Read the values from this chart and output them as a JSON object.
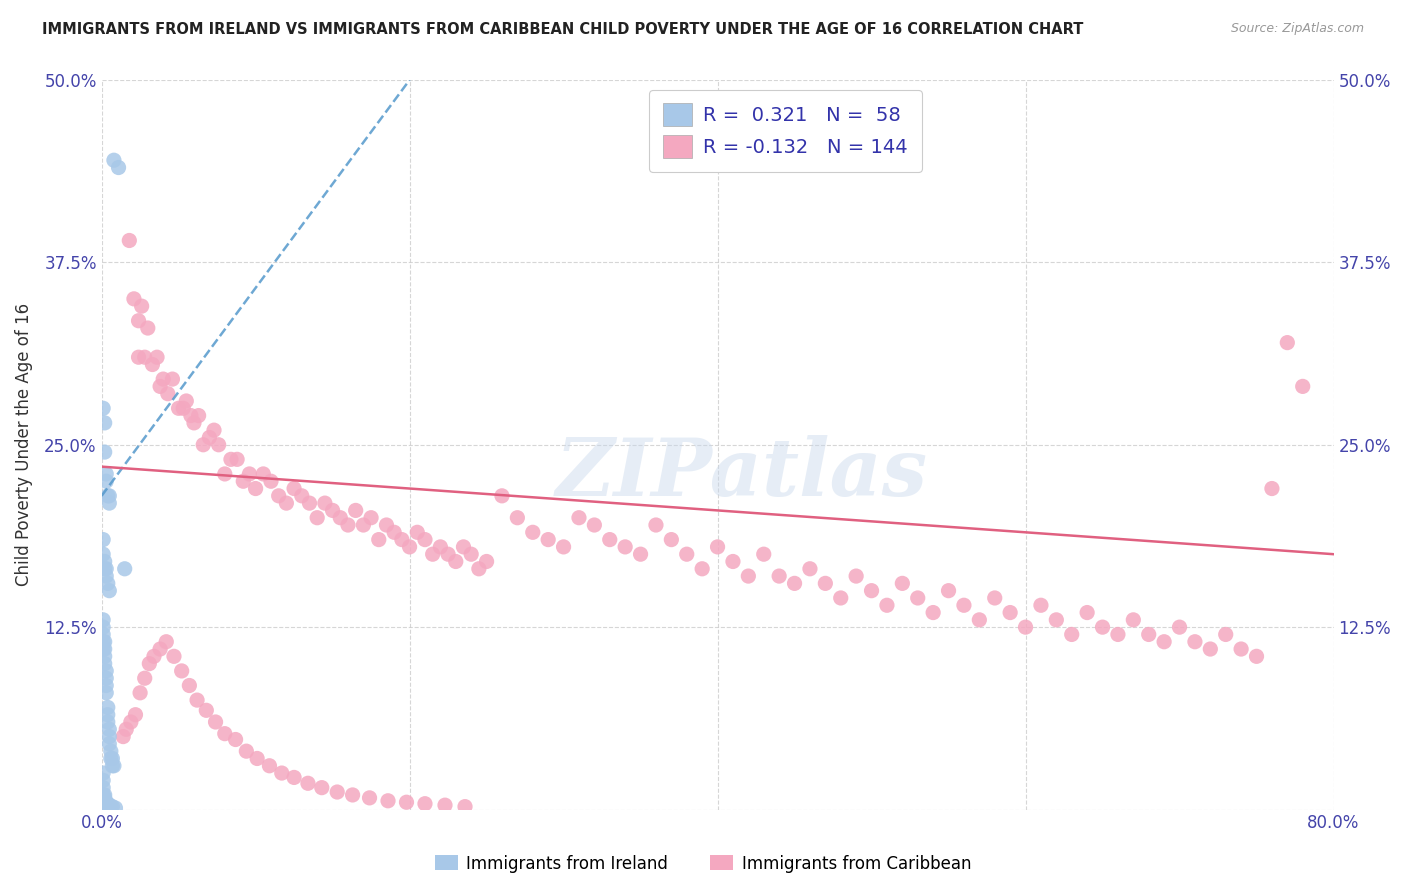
{
  "title": "IMMIGRANTS FROM IRELAND VS IMMIGRANTS FROM CARIBBEAN CHILD POVERTY UNDER THE AGE OF 16 CORRELATION CHART",
  "source": "Source: ZipAtlas.com",
  "ylabel": "Child Poverty Under the Age of 16",
  "xlim": [
    0.0,
    0.8
  ],
  "ylim": [
    0.0,
    0.5
  ],
  "xtick_positions": [
    0.0,
    0.2,
    0.4,
    0.6,
    0.8
  ],
  "xticklabels": [
    "0.0%",
    "",
    "",
    "",
    "80.0%"
  ],
  "ytick_positions": [
    0.0,
    0.125,
    0.25,
    0.375,
    0.5
  ],
  "yticklabels": [
    "",
    "12.5%",
    "25.0%",
    "37.5%",
    "50.0%"
  ],
  "legend1_label": "Immigrants from Ireland",
  "legend2_label": "Immigrants from Caribbean",
  "R_ireland": 0.321,
  "N_ireland": 58,
  "R_caribbean": -0.132,
  "N_caribbean": 144,
  "watermark": "ZIPatlas",
  "ireland_color": "#a8c8e8",
  "ireland_line_color": "#5599cc",
  "caribbean_color": "#f4a8c0",
  "caribbean_line_color": "#e06080",
  "ireland_line_x": [
    0.0,
    0.2
  ],
  "ireland_line_y": [
    0.215,
    0.5
  ],
  "caribbean_line_x": [
    0.0,
    0.8
  ],
  "caribbean_line_y": [
    0.235,
    0.175
  ],
  "ireland_scatter_x": [
    0.008,
    0.011,
    0.001,
    0.002,
    0.002,
    0.003,
    0.003,
    0.004,
    0.005,
    0.005,
    0.001,
    0.001,
    0.002,
    0.002,
    0.003,
    0.003,
    0.004,
    0.005,
    0.001,
    0.001,
    0.001,
    0.001,
    0.001,
    0.002,
    0.002,
    0.002,
    0.002,
    0.003,
    0.003,
    0.003,
    0.003,
    0.004,
    0.004,
    0.004,
    0.005,
    0.005,
    0.005,
    0.006,
    0.006,
    0.007,
    0.007,
    0.008,
    0.001,
    0.001,
    0.001,
    0.001,
    0.002,
    0.002,
    0.002,
    0.003,
    0.003,
    0.004,
    0.004,
    0.005,
    0.006,
    0.007,
    0.009,
    0.015
  ],
  "ireland_scatter_y": [
    0.445,
    0.44,
    0.275,
    0.265,
    0.245,
    0.23,
    0.225,
    0.215,
    0.215,
    0.21,
    0.185,
    0.175,
    0.17,
    0.165,
    0.165,
    0.16,
    0.155,
    0.15,
    0.13,
    0.125,
    0.12,
    0.115,
    0.11,
    0.115,
    0.11,
    0.105,
    0.1,
    0.095,
    0.09,
    0.085,
    0.08,
    0.07,
    0.065,
    0.06,
    0.055,
    0.05,
    0.045,
    0.04,
    0.035,
    0.035,
    0.03,
    0.03,
    0.025,
    0.02,
    0.015,
    0.01,
    0.01,
    0.008,
    0.005,
    0.005,
    0.004,
    0.004,
    0.003,
    0.003,
    0.002,
    0.002,
    0.001,
    0.165
  ],
  "caribbean_scatter_x": [
    0.018,
    0.021,
    0.024,
    0.024,
    0.026,
    0.028,
    0.03,
    0.033,
    0.036,
    0.038,
    0.04,
    0.043,
    0.046,
    0.05,
    0.053,
    0.055,
    0.058,
    0.06,
    0.063,
    0.066,
    0.07,
    0.073,
    0.076,
    0.08,
    0.084,
    0.088,
    0.092,
    0.096,
    0.1,
    0.105,
    0.11,
    0.115,
    0.12,
    0.125,
    0.13,
    0.135,
    0.14,
    0.145,
    0.15,
    0.155,
    0.16,
    0.165,
    0.17,
    0.175,
    0.18,
    0.185,
    0.19,
    0.195,
    0.2,
    0.205,
    0.21,
    0.215,
    0.22,
    0.225,
    0.23,
    0.235,
    0.24,
    0.245,
    0.25,
    0.26,
    0.27,
    0.28,
    0.29,
    0.3,
    0.31,
    0.32,
    0.33,
    0.34,
    0.35,
    0.36,
    0.37,
    0.38,
    0.39,
    0.4,
    0.41,
    0.42,
    0.43,
    0.44,
    0.45,
    0.46,
    0.47,
    0.48,
    0.49,
    0.5,
    0.51,
    0.52,
    0.53,
    0.54,
    0.55,
    0.56,
    0.57,
    0.58,
    0.59,
    0.6,
    0.61,
    0.62,
    0.63,
    0.64,
    0.65,
    0.66,
    0.67,
    0.68,
    0.69,
    0.7,
    0.71,
    0.72,
    0.73,
    0.74,
    0.75,
    0.76,
    0.77,
    0.78,
    0.014,
    0.016,
    0.019,
    0.022,
    0.025,
    0.028,
    0.031,
    0.034,
    0.038,
    0.042,
    0.047,
    0.052,
    0.057,
    0.062,
    0.068,
    0.074,
    0.08,
    0.087,
    0.094,
    0.101,
    0.109,
    0.117,
    0.125,
    0.134,
    0.143,
    0.153,
    0.163,
    0.174,
    0.186,
    0.198,
    0.21,
    0.223,
    0.236
  ],
  "caribbean_scatter_y": [
    0.39,
    0.35,
    0.335,
    0.31,
    0.345,
    0.31,
    0.33,
    0.305,
    0.31,
    0.29,
    0.295,
    0.285,
    0.295,
    0.275,
    0.275,
    0.28,
    0.27,
    0.265,
    0.27,
    0.25,
    0.255,
    0.26,
    0.25,
    0.23,
    0.24,
    0.24,
    0.225,
    0.23,
    0.22,
    0.23,
    0.225,
    0.215,
    0.21,
    0.22,
    0.215,
    0.21,
    0.2,
    0.21,
    0.205,
    0.2,
    0.195,
    0.205,
    0.195,
    0.2,
    0.185,
    0.195,
    0.19,
    0.185,
    0.18,
    0.19,
    0.185,
    0.175,
    0.18,
    0.175,
    0.17,
    0.18,
    0.175,
    0.165,
    0.17,
    0.215,
    0.2,
    0.19,
    0.185,
    0.18,
    0.2,
    0.195,
    0.185,
    0.18,
    0.175,
    0.195,
    0.185,
    0.175,
    0.165,
    0.18,
    0.17,
    0.16,
    0.175,
    0.16,
    0.155,
    0.165,
    0.155,
    0.145,
    0.16,
    0.15,
    0.14,
    0.155,
    0.145,
    0.135,
    0.15,
    0.14,
    0.13,
    0.145,
    0.135,
    0.125,
    0.14,
    0.13,
    0.12,
    0.135,
    0.125,
    0.12,
    0.13,
    0.12,
    0.115,
    0.125,
    0.115,
    0.11,
    0.12,
    0.11,
    0.105,
    0.22,
    0.32,
    0.29,
    0.05,
    0.055,
    0.06,
    0.065,
    0.08,
    0.09,
    0.1,
    0.105,
    0.11,
    0.115,
    0.105,
    0.095,
    0.085,
    0.075,
    0.068,
    0.06,
    0.052,
    0.048,
    0.04,
    0.035,
    0.03,
    0.025,
    0.022,
    0.018,
    0.015,
    0.012,
    0.01,
    0.008,
    0.006,
    0.005,
    0.004,
    0.003,
    0.002
  ]
}
